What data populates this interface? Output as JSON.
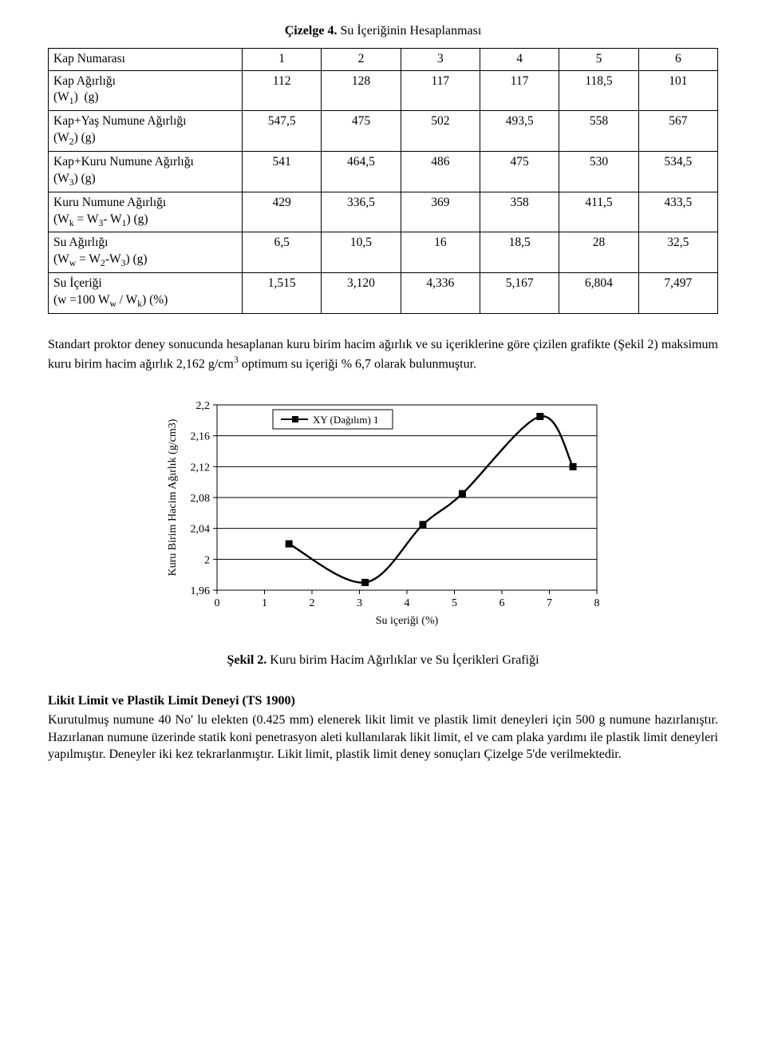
{
  "title": {
    "bold": "Çizelge 4.",
    "rest": " Su İçeriğinin Hesaplanması"
  },
  "table": {
    "header_label": "Kap Numarası",
    "col_headers": [
      "1",
      "2",
      "3",
      "4",
      "5",
      "6"
    ],
    "rows": [
      {
        "label_html": "Kap Ağırlığı<br>(W<span class='sub'>1</span>) &nbsp;(g)",
        "vals": [
          "112",
          "128",
          "117",
          "117",
          "118,5",
          "101"
        ]
      },
      {
        "label_html": "Kap+Yaş Numune Ağırlığı<br>(W<span class='sub'>2</span>) (g)",
        "vals": [
          "547,5",
          "475",
          "502",
          "493,5",
          "558",
          "567"
        ]
      },
      {
        "label_html": "Kap+Kuru Numune Ağırlığı<br>(W<span class='sub'>3</span>) (g)",
        "vals": [
          "541",
          "464,5",
          "486",
          "475",
          "530",
          "534,5"
        ]
      },
      {
        "label_html": "Kuru Numune Ağırlığı<br>(W<span class='sub'>k</span> = W<span class='sub'>3</span>- W<span class='sub'>1</span>) (g)",
        "vals": [
          "429",
          "336,5",
          "369",
          "358",
          "411,5",
          "433,5"
        ]
      },
      {
        "label_html": "Su Ağırlığı<br>(W<span class='sub'>w</span> = W<span class='sub'>2</span>-W<span class='sub'>3</span>) (g)",
        "vals": [
          "6,5",
          "10,5",
          "16",
          "18,5",
          "28",
          "32,5"
        ]
      },
      {
        "label_html": "Su İçeriği<br>(w =100 W<span class='sub'>w</span> / W<span class='sub'>k</span>) (%)",
        "vals": [
          "1,515",
          "3,120",
          "4,336",
          "5,167",
          "6,804",
          "7,497"
        ]
      }
    ]
  },
  "paragraph1_html": "Standart proktor deney sonucunda hesaplanan kuru birim hacim ağırlık ve su içeriklerine göre çizilen grafikte (Şekil 2) maksimum kuru birim hacim ağırlık 2,162 g/cm<span class='sup'>3</span> optimum su içeriği % 6,7 olarak bulunmuştur.",
  "chart": {
    "type": "line",
    "x_values": [
      1.515,
      3.12,
      4.336,
      5.167,
      6.804,
      7.497
    ],
    "y_values": [
      2.02,
      1.97,
      2.045,
      2.085,
      2.185,
      2.12
    ],
    "xlim": [
      0,
      8
    ],
    "ylim": [
      1.96,
      2.2
    ],
    "xticks": [
      0,
      1,
      2,
      3,
      4,
      5,
      6,
      7,
      8
    ],
    "yticks": [
      1.96,
      2.0,
      2.04,
      2.08,
      2.12,
      2.16,
      2.2
    ],
    "ytick_labels": [
      "1,96",
      "2",
      "2,04",
      "2,08",
      "2,12",
      "2,16",
      "2,2"
    ],
    "xtick_labels": [
      "0",
      "1",
      "2",
      "3",
      "4",
      "5",
      "6",
      "7",
      "8"
    ],
    "line_color": "#000000",
    "marker_color": "#000000",
    "marker_size": 8,
    "line_width": 2.4,
    "grid_color": "#000000",
    "axis_color": "#000000",
    "background_color": "#ffffff",
    "legend_text": "XY (Dağılım) 1",
    "x_label": "Su içeriği (%)",
    "y_label": "Kuru Birim Hacim Ağırlık (g/cm3)",
    "tick_fontsize": 14,
    "label_fontsize": 14,
    "legend_fontsize": 13
  },
  "chart_caption": {
    "bold": "Şekil 2.",
    "rest": " Kuru birim Hacim Ağırlıklar ve Su İçerikleri Grafiği"
  },
  "section_heading": "Likit Limit ve Plastik Limit Deneyi (TS 1900)",
  "paragraph2": "Kurutulmuş numune 40 No' lu elekten (0.425 mm) elenerek likit limit ve plastik limit deneyleri için 500 g numune hazırlanıştır. Hazırlanan numune üzerinde statik koni penetrasyon aleti kullanılarak likit limit, el ve cam plaka yardımı ile plastik limit deneyleri yapılmıştır. Deneyler iki kez tekrarlanmıştır. Likit limit, plastik limit deney sonuçları Çizelge 5'de verilmektedir."
}
